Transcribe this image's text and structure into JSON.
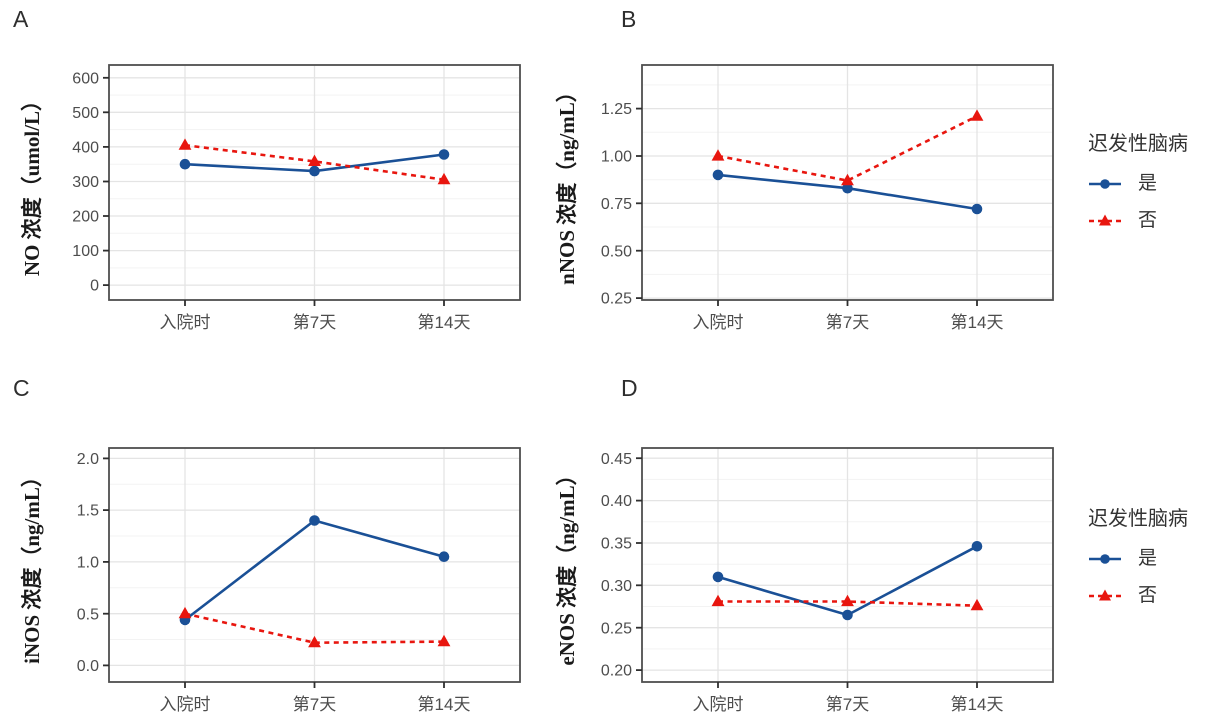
{
  "palette": {
    "series_yes": "#1a5096",
    "series_no": "#e8160f",
    "grid_major": "#e4e4e4",
    "grid_minor": "#f3f3f3",
    "panel_border": "#4f4f4f",
    "tick_mark": "#2f2f2f",
    "tick_label": "#4d4d4d",
    "axis_title": "#1a1a1a",
    "panel_letter": "#2e2e2e",
    "legend_text": "#333333"
  },
  "legend": {
    "title": "迟发性脑病",
    "items": [
      {
        "key": "yes",
        "label": "是",
        "marker": "circle",
        "line": "solid",
        "color": "#1a5096"
      },
      {
        "key": "no",
        "label": "否",
        "marker": "triangle",
        "line": "dashed",
        "color": "#e8160f"
      }
    ]
  },
  "x_categories": [
    "入院时",
    "第7天",
    "第14天"
  ],
  "chart_data": [
    {
      "panel_label": "A",
      "type": "line",
      "ylabel": "NO 浓度（umol/L）",
      "categories": [
        "入院时",
        "第7天",
        "第14天"
      ],
      "yticks": [
        0,
        100,
        200,
        300,
        400,
        500,
        600
      ],
      "ytick_labels": [
        "0",
        "100",
        "200",
        "300",
        "400",
        "500",
        "600"
      ],
      "ylim": [
        -43,
        637
      ],
      "grid": true,
      "legend_position": "right",
      "series": [
        {
          "name": "是",
          "values": [
            350,
            330,
            378
          ]
        },
        {
          "name": "否",
          "values": [
            405,
            358,
            305
          ]
        }
      ]
    },
    {
      "panel_label": "B",
      "type": "line",
      "ylabel": "nNOS 浓度（ng/mL）",
      "categories": [
        "入院时",
        "第7天",
        "第14天"
      ],
      "yticks": [
        0.25,
        0.5,
        0.75,
        1.0,
        1.25
      ],
      "ytick_labels": [
        "0.25",
        "0.50",
        "0.75",
        "1.00",
        "1.25"
      ],
      "ylim": [
        0.24,
        1.48
      ],
      "grid": true,
      "legend_position": "right",
      "series": [
        {
          "name": "是",
          "values": [
            0.9,
            0.83,
            0.72
          ]
        },
        {
          "name": "否",
          "values": [
            1.0,
            0.87,
            1.21
          ]
        }
      ]
    },
    {
      "panel_label": "C",
      "type": "line",
      "ylabel": "iNOS 浓度（ng/mL）",
      "categories": [
        "入院时",
        "第7天",
        "第14天"
      ],
      "yticks": [
        0.0,
        0.5,
        1.0,
        1.5,
        2.0
      ],
      "ytick_labels": [
        "0.0",
        "0.5",
        "1.0",
        "1.5",
        "2.0"
      ],
      "ylim": [
        -0.16,
        2.1
      ],
      "grid": true,
      "legend_position": "right",
      "series": [
        {
          "name": "是",
          "values": [
            0.44,
            1.4,
            1.05
          ]
        },
        {
          "name": "否",
          "values": [
            0.5,
            0.22,
            0.23
          ]
        }
      ]
    },
    {
      "panel_label": "D",
      "type": "line",
      "ylabel": "eNOS 浓度（ng/mL）",
      "categories": [
        "入院时",
        "第7天",
        "第14天"
      ],
      "yticks": [
        0.2,
        0.25,
        0.3,
        0.35,
        0.4,
        0.45
      ],
      "ytick_labels": [
        "0.20",
        "0.25",
        "0.30",
        "0.35",
        "0.40",
        "0.45"
      ],
      "ylim": [
        0.186,
        0.462
      ],
      "grid": true,
      "legend_position": "right",
      "series": [
        {
          "name": "是",
          "values": [
            0.31,
            0.265,
            0.346
          ]
        },
        {
          "name": "否",
          "values": [
            0.281,
            0.281,
            0.276
          ]
        }
      ]
    }
  ]
}
